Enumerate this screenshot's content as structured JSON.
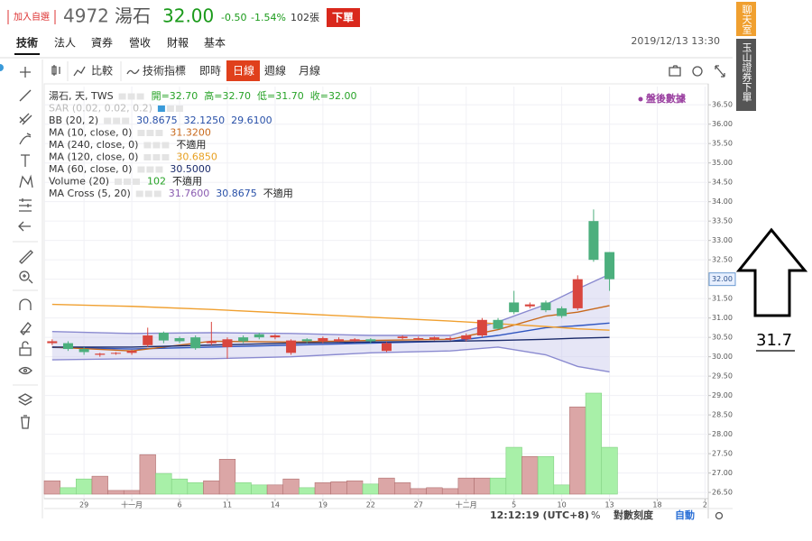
{
  "header": {
    "watch": "加入自選",
    "code": "4972",
    "name": "湯石",
    "price": "32.00",
    "change": "-0.50",
    "change_pct": "-1.54%",
    "volume": "102張",
    "order": "下單"
  },
  "tabs": [
    "技術",
    "法人",
    "資券",
    "營收",
    "財報",
    "基本"
  ],
  "datetime": "2019/12/13 13:30",
  "toolbar": {
    "compare": "比較",
    "indicators": "技術指標",
    "periods": [
      "即時",
      "日線",
      "週線",
      "月線"
    ]
  },
  "legend": [
    {
      "name": "湯石, 天, TWS",
      "values": [
        {
          "text": "開=32.70",
          "color": "#27a327"
        },
        {
          "text": "高=32.70",
          "color": "#27a327"
        },
        {
          "text": "低=31.70",
          "color": "#27a327"
        },
        {
          "text": "收=32.00",
          "color": "#27a327"
        }
      ]
    },
    {
      "name": "SAR (0.02, 0.02, 0.2)",
      "faded": true,
      "values": []
    },
    {
      "name": "BB (20, 2)",
      "values": [
        {
          "text": "30.8675",
          "color": "#2850a8"
        },
        {
          "text": "32.1250",
          "color": "#2850a8"
        },
        {
          "text": "29.6100",
          "color": "#2850a8"
        }
      ]
    },
    {
      "name": "MA (10, close, 0)",
      "values": [
        {
          "text": "31.3200",
          "color": "#c8691c"
        }
      ]
    },
    {
      "name": "MA (240, close, 0)",
      "values": [
        {
          "text": "不適用",
          "color": "#222222"
        }
      ]
    },
    {
      "name": "MA (120, close, 0)",
      "values": [
        {
          "text": "30.6850",
          "color": "#e8a020"
        }
      ]
    },
    {
      "name": "MA (60, close, 0)",
      "values": [
        {
          "text": "30.5000",
          "color": "#1a2a6a"
        }
      ]
    },
    {
      "name": "Volume (20)",
      "values": [
        {
          "text": "102",
          "color": "#27a327"
        },
        {
          "text": "不適用",
          "color": "#222222"
        }
      ]
    },
    {
      "name": "MA Cross (5, 20)",
      "values": [
        {
          "text": "31.7600",
          "color": "#8a5cb0"
        },
        {
          "text": "30.8675",
          "color": "#2850a8"
        },
        {
          "text": "不適用",
          "color": "#222222"
        }
      ]
    }
  ],
  "after_hours": "盤後數據",
  "chart": {
    "type": "candlestick",
    "up_color": "#d9463e",
    "down_color": "#4caf7d",
    "volume_up_color": "#dba6a6",
    "volume_down_color": "#a8f0a8",
    "open": [
      30.35,
      30.35,
      30.2,
      30.05,
      30.08,
      30.1,
      30.3,
      30.62,
      30.48,
      30.5,
      30.35,
      30.25,
      30.5,
      30.58,
      30.5,
      30.1,
      30.45,
      30.4,
      30.4,
      30.4,
      30.45,
      30.15,
      30.48,
      30.45,
      30.45,
      30.45,
      30.45,
      30.55,
      30.95,
      31.4,
      31.3,
      31.4,
      31.25,
      31.25,
      33.5,
      32.7
    ],
    "high": [
      30.45,
      30.4,
      30.25,
      30.1,
      30.12,
      30.18,
      30.75,
      30.65,
      30.52,
      30.55,
      30.9,
      30.5,
      30.55,
      30.62,
      30.58,
      30.45,
      30.48,
      30.52,
      30.5,
      30.48,
      30.48,
      30.38,
      30.55,
      30.52,
      30.52,
      30.52,
      30.6,
      31.0,
      31.0,
      31.7,
      31.4,
      31.45,
      31.3,
      32.1,
      33.8,
      32.7
    ],
    "low": [
      30.3,
      30.15,
      30.05,
      30.0,
      30.05,
      30.05,
      30.25,
      30.35,
      30.35,
      30.18,
      30.3,
      29.95,
      30.35,
      30.45,
      30.45,
      30.05,
      30.35,
      30.35,
      30.38,
      30.38,
      30.35,
      30.12,
      30.45,
      30.42,
      30.42,
      30.42,
      30.4,
      30.5,
      30.7,
      31.1,
      31.25,
      31.15,
      31.0,
      31.2,
      32.45,
      31.7
    ],
    "close": [
      30.4,
      30.2,
      30.12,
      30.08,
      30.1,
      30.15,
      30.55,
      30.42,
      30.4,
      30.22,
      30.4,
      30.45,
      30.4,
      30.5,
      30.55,
      30.42,
      30.4,
      30.48,
      30.45,
      30.45,
      30.4,
      30.35,
      30.52,
      30.48,
      30.5,
      30.48,
      30.55,
      30.95,
      30.72,
      31.15,
      31.35,
      31.2,
      31.05,
      32.0,
      32.5,
      32.0
    ],
    "volume": [
      29,
      14,
      33,
      39,
      8,
      8,
      86,
      45,
      33,
      25,
      29,
      76,
      25,
      20,
      20,
      33,
      14,
      25,
      27,
      29,
      22,
      35,
      25,
      12,
      14,
      12,
      35,
      35,
      35,
      102,
      82,
      82,
      20,
      190,
      220,
      102
    ],
    "line_x": [
      0,
      5,
      10,
      15,
      20,
      25,
      28,
      31,
      33,
      35
    ],
    "lines": [
      {
        "color": "#8a8ad0",
        "values": [
          30.65,
          30.6,
          30.62,
          30.6,
          30.55,
          30.55,
          30.9,
          31.35,
          31.75,
          32.125
        ]
      },
      {
        "color": "#8a8ad0",
        "values": [
          29.92,
          29.95,
          29.95,
          30.0,
          30.1,
          30.15,
          30.25,
          30.05,
          29.75,
          29.61
        ]
      },
      {
        "color": "#2f55c0",
        "values": [
          30.24,
          30.2,
          30.25,
          30.3,
          30.35,
          30.4,
          30.55,
          30.75,
          30.8,
          30.8675
        ]
      },
      {
        "color": "#c8691c",
        "values": [
          30.25,
          30.15,
          30.4,
          30.38,
          30.42,
          30.45,
          30.7,
          31.05,
          31.15,
          31.32
        ]
      },
      {
        "color": "#f0a030",
        "values": [
          31.35,
          31.3,
          31.22,
          31.12,
          31.02,
          30.92,
          30.85,
          30.78,
          30.72,
          30.685
        ]
      },
      {
        "color": "#1a2a6a",
        "values": [
          30.25,
          30.25,
          30.3,
          30.35,
          30.38,
          30.4,
          30.42,
          30.45,
          30.48,
          30.5
        ]
      }
    ],
    "band_color": "#c8c8ec",
    "xlim": [
      -0.5,
      41.2
    ],
    "ylim": [
      26.34,
      36.97
    ],
    "grid": true,
    "yticks": [
      {
        "value": 26.5,
        "label": "26.50"
      },
      {
        "value": 27,
        "label": "27.00"
      },
      {
        "value": 27.5,
        "label": "27.50"
      },
      {
        "value": 28,
        "label": "28.00"
      },
      {
        "value": 28.5,
        "label": "28.50"
      },
      {
        "value": 29,
        "label": "29.00"
      },
      {
        "value": 29.5,
        "label": "29.50"
      },
      {
        "value": 30,
        "label": "30.00"
      },
      {
        "value": 30.5,
        "label": "30.50"
      },
      {
        "value": 31,
        "label": "31.00"
      },
      {
        "value": 31.5,
        "label": "31.50"
      },
      {
        "value": 32,
        "label": "32.00"
      },
      {
        "value": 32.5,
        "label": "32.50"
      },
      {
        "value": 33,
        "label": "33.00"
      },
      {
        "value": 33.5,
        "label": "33.50"
      },
      {
        "value": 34,
        "label": "34.00"
      },
      {
        "value": 34.5,
        "label": "34.50"
      },
      {
        "value": 35,
        "label": "35.00"
      },
      {
        "value": 35.5,
        "label": "35.50"
      },
      {
        "value": 36,
        "label": "36.00"
      },
      {
        "value": 36.5,
        "label": "36.50"
      }
    ],
    "xticks": [
      {
        "value": 2,
        "label": "29"
      },
      {
        "value": 5,
        "label": "十一月"
      },
      {
        "value": 8,
        "label": "6"
      },
      {
        "value": 11,
        "label": "11"
      },
      {
        "value": 14,
        "label": "14"
      },
      {
        "value": 17,
        "label": "19"
      },
      {
        "value": 20,
        "label": "22"
      },
      {
        "value": 23,
        "label": "27"
      },
      {
        "value": 26,
        "label": "十二月"
      },
      {
        "value": 29,
        "label": "5"
      },
      {
        "value": 32,
        "label": "10"
      },
      {
        "value": 35,
        "label": "13"
      },
      {
        "value": 38,
        "label": "18"
      },
      {
        "value": 41,
        "label": "2"
      }
    ],
    "price_marker": {
      "value": 32,
      "label": "32.00"
    }
  },
  "footer": {
    "time": "12:12:19 (UTC+8)",
    "percent": "%",
    "log": "對數刻度",
    "auto": "自動"
  },
  "side_tabs": [
    "聊天室",
    "玉山證券下單"
  ],
  "annotation": "31.7"
}
